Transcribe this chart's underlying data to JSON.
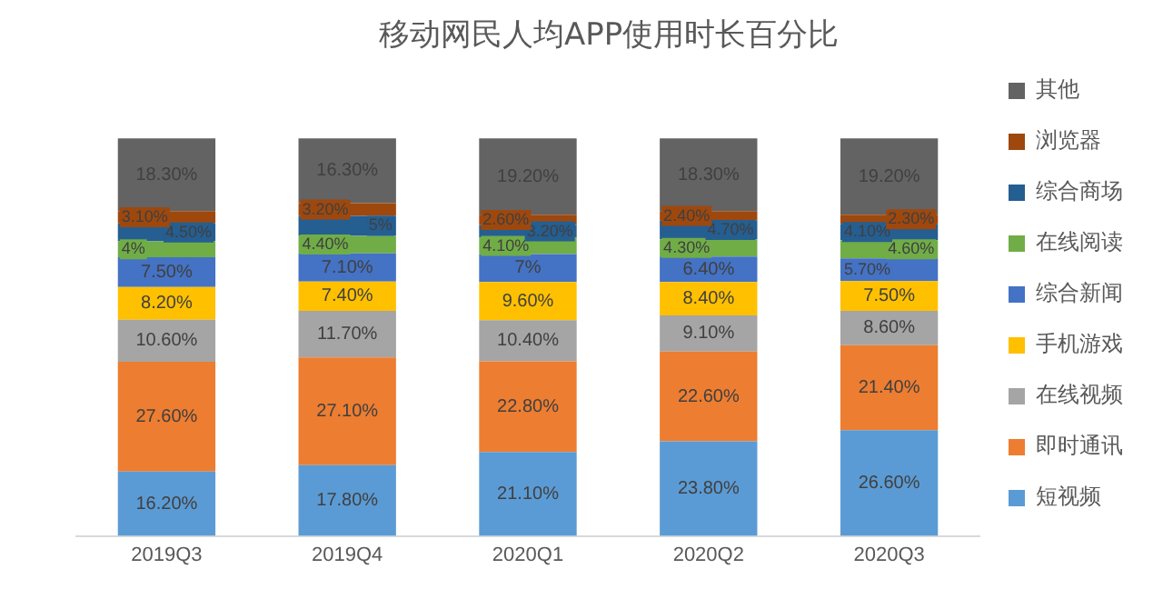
{
  "chart_data": {
    "type": "bar",
    "title": "移动网民人均APP使用时长百分比",
    "stacked": true,
    "legend": "right",
    "tick_labels": "x",
    "grid": false,
    "categories": [
      "2019Q3",
      "2019Q4",
      "2020Q1",
      "2020Q2",
      "2020Q3"
    ],
    "series": [
      {
        "name": "短视频",
        "color": "#5b9bd5",
        "values": [
          16.2,
          17.8,
          21.1,
          23.8,
          26.6
        ],
        "value_labels": [
          "16.20%",
          "17.80%",
          "21.10%",
          "23.80%",
          "26.60%"
        ]
      },
      {
        "name": "即时通讯",
        "color": "#ed7d31",
        "values": [
          27.6,
          27.1,
          22.8,
          22.6,
          21.4
        ],
        "value_labels": [
          "27.60%",
          "27.10%",
          "22.80%",
          "22.60%",
          "21.40%"
        ]
      },
      {
        "name": "在线视频",
        "color": "#a5a5a5",
        "values": [
          10.6,
          11.7,
          10.4,
          9.1,
          8.6
        ],
        "value_labels": [
          "10.60%",
          "11.70%",
          "10.40%",
          "9.10%",
          "8.60%"
        ]
      },
      {
        "name": "手机游戏",
        "color": "#ffc000",
        "values": [
          8.2,
          7.4,
          9.6,
          8.4,
          7.5
        ],
        "value_labels": [
          "8.20%",
          "7.40%",
          "9.60%",
          "8.40%",
          "7.50%"
        ]
      },
      {
        "name": "综合新闻",
        "color": "#4472c4",
        "values": [
          7.5,
          7.1,
          7,
          6.4,
          5.7
        ],
        "value_labels": [
          "7.50%",
          "7.10%",
          "7%",
          "6.40%",
          "5.70%"
        ]
      },
      {
        "name": "在线阅读",
        "color": "#70ad47",
        "values": [
          4,
          4.4,
          4.1,
          4.3,
          4.6
        ],
        "value_labels": [
          "4%",
          "4.40%",
          "4.10%",
          "4.30%",
          "4.60%"
        ]
      },
      {
        "name": "综合商场",
        "color": "#255e91",
        "values": [
          4.5,
          5,
          3.2,
          4.7,
          4.1
        ],
        "value_labels": [
          "4.50%",
          "5%",
          "3.20%",
          "4.70%",
          "4.10%"
        ]
      },
      {
        "name": "浏览器",
        "color": "#9e480e",
        "values": [
          3.1,
          3.2,
          2.6,
          2.4,
          2.3
        ],
        "value_labels": [
          "3.10%",
          "3.20%",
          "2.60%",
          "2.40%",
          "2.30%"
        ]
      },
      {
        "name": "其他",
        "color": "#636363",
        "values": [
          18.3,
          16.3,
          19.2,
          18.3,
          19.2
        ],
        "value_labels": [
          "18.30%",
          "16.30%",
          "19.20%",
          "18.30%",
          "19.20%"
        ]
      }
    ]
  }
}
